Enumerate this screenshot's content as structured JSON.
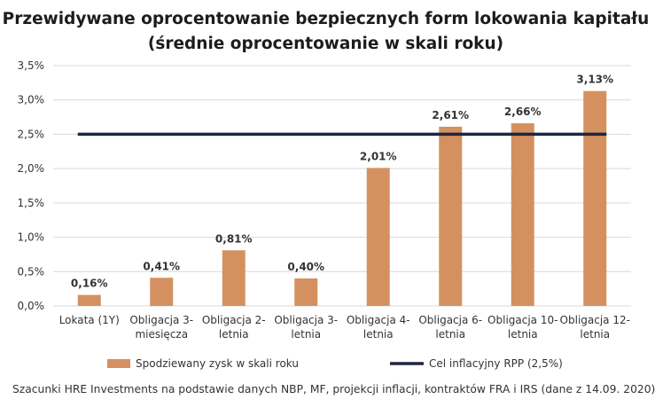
{
  "chart_data": {
    "type": "bar",
    "title_lines": [
      "Przewidywane oprocentowanie bezpiecznych form lokowania kapitału",
      "(średnie oprocentowanie w skali roku)"
    ],
    "categories": [
      [
        "Lokata (1Y)"
      ],
      [
        "Obligacja 3-",
        "miesięcza"
      ],
      [
        "Obligacja 2-",
        "letnia"
      ],
      [
        "Obligacja 3-",
        "letnia"
      ],
      [
        "Obligacja 4-",
        "letnia"
      ],
      [
        "Obligacja 6-",
        "letnia"
      ],
      [
        "Obligacja 10-",
        "letnia"
      ],
      [
        "Obligacja 12-",
        "letnia"
      ]
    ],
    "series": [
      {
        "name": "Spodziewany zysk w skali roku",
        "type": "bar",
        "color": "#D4915F",
        "values": [
          0.16,
          0.41,
          0.81,
          0.4,
          2.01,
          2.61,
          2.66,
          3.13
        ],
        "value_labels": [
          "0,16%",
          "0,41%",
          "0,81%",
          "0,40%",
          "2,01%",
          "2,61%",
          "2,66%",
          "3,13%"
        ]
      },
      {
        "name": "Cel inflacyjny RPP (2,5%)",
        "type": "line",
        "color": "#1F2641",
        "values": [
          2.5,
          2.5,
          2.5,
          2.5,
          2.5,
          2.5,
          2.5,
          2.5
        ]
      }
    ],
    "ylim": [
      0,
      3.5
    ],
    "yticks": [
      0,
      0.5,
      1.0,
      1.5,
      2.0,
      2.5,
      3.0,
      3.5
    ],
    "ytick_labels": [
      "0,0%",
      "0,5%",
      "1,0%",
      "1,5%",
      "2,0%",
      "2,5%",
      "3,0%",
      "3,5%"
    ],
    "grid": true,
    "legend_position": "bottom",
    "xlabel": "",
    "ylabel": ""
  },
  "footnote": "Szacunki HRE Investments na podstawie danych NBP, MF, projekcji inflacji, kontraktów FRA i IRS (dane z 14.09. 2020)"
}
